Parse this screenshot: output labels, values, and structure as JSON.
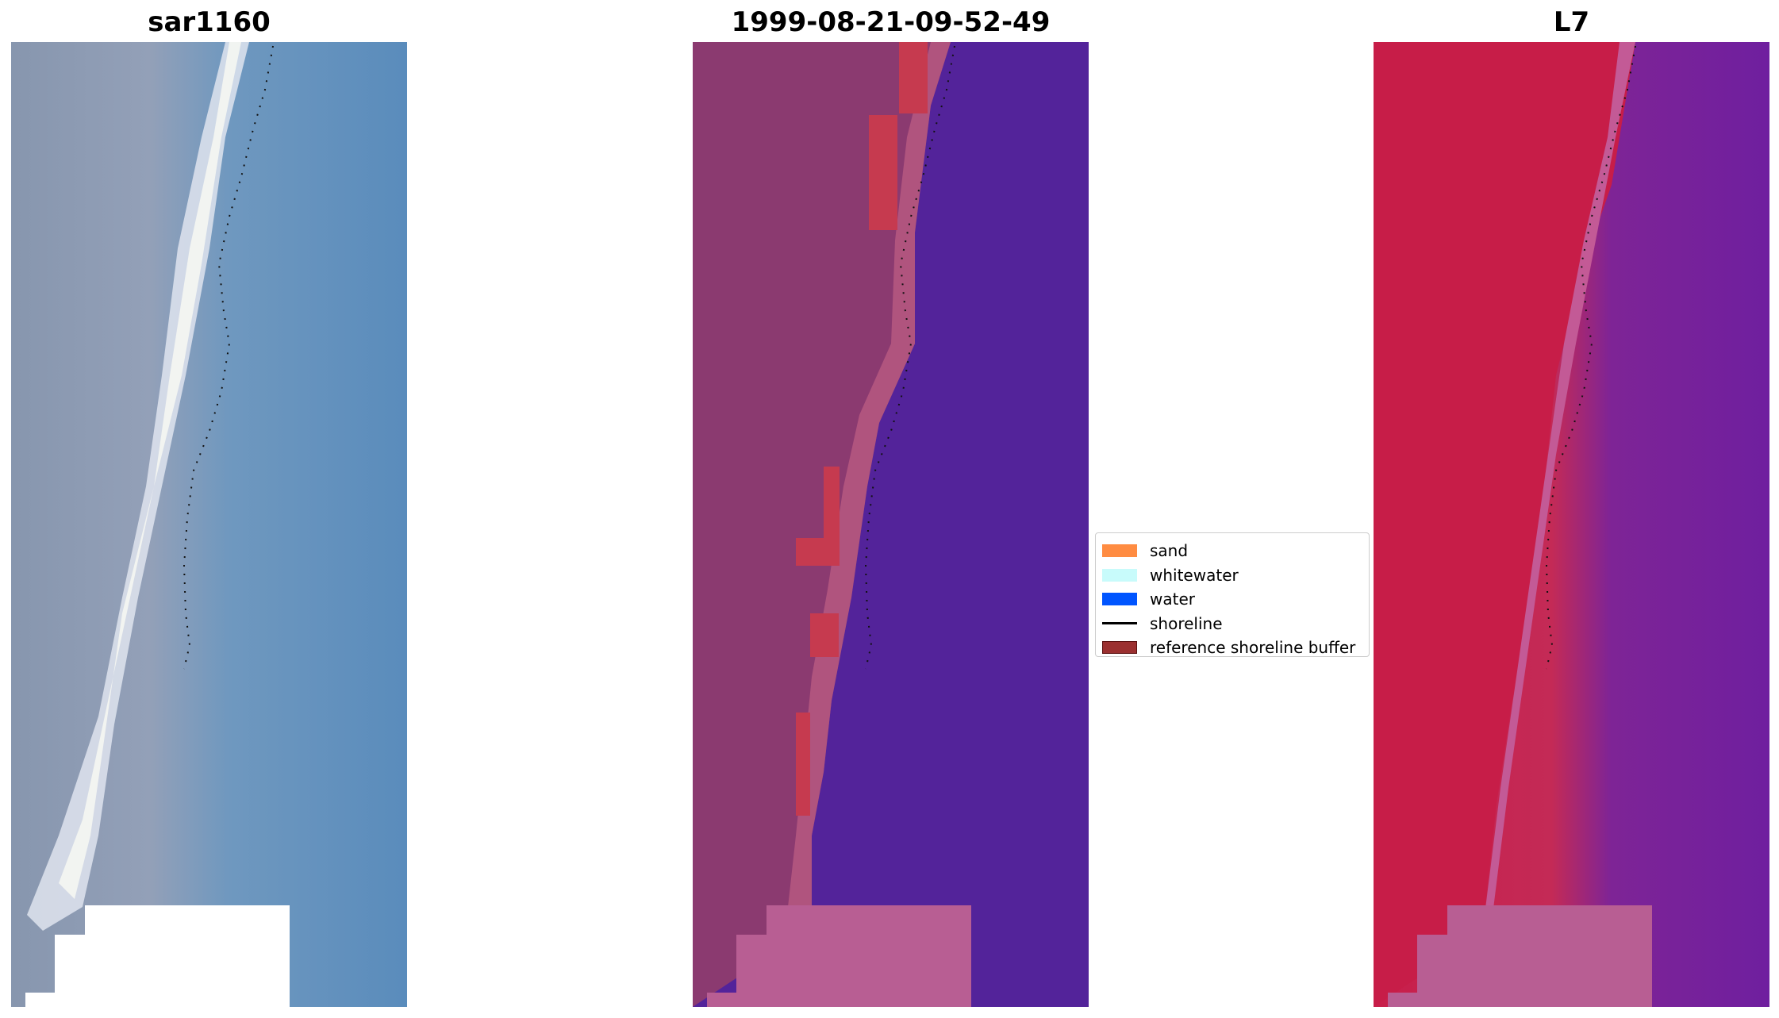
{
  "panels": [
    {
      "title": "sar1160"
    },
    {
      "title": "1999-08-21-09-52-49"
    },
    {
      "title": "L7"
    }
  ],
  "legend": {
    "items": [
      {
        "label": "sand",
        "color": "#ff8c42",
        "kind": "patch"
      },
      {
        "label": "whitewater",
        "color": "#c8fbfb",
        "kind": "patch"
      },
      {
        "label": "water",
        "color": "#0055ff",
        "kind": "patch"
      },
      {
        "label": "shoreline",
        "color": "#000000",
        "kind": "line"
      },
      {
        "label": "reference shoreline buffer",
        "color": "#9b3030",
        "kind": "patch-outlined"
      }
    ]
  },
  "colors": {
    "rgb_water": "#5a8fbf",
    "rgb_land": "#8a96b0",
    "rgb_foam": "#eef2f8",
    "classified_water": "#53239a",
    "classified_land": "#8b3a70",
    "classified_buffer_red": "#c63a4f",
    "classified_nodata": "#b85e93",
    "false_color_land": "#c81e4a",
    "false_color_water": "#6f1f9f",
    "nodata_white": "#ffffff"
  }
}
